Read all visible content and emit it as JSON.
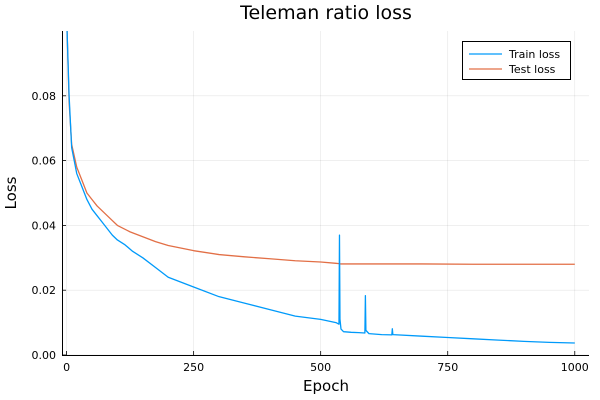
{
  "chart_data": {
    "type": "line",
    "title": "Teleman ratio loss",
    "xlabel": "Epoch",
    "ylabel": "Loss",
    "xlim": [
      -9,
      1028
    ],
    "ylim": [
      0,
      0.1
    ],
    "xticks": [
      0,
      250,
      500,
      750,
      1000
    ],
    "xtick_labels": [
      "0",
      "250",
      "500",
      "750",
      "1000"
    ],
    "yticks": [
      0,
      0.02,
      0.04,
      0.06,
      0.08
    ],
    "ytick_labels": [
      "0.00",
      "0.02",
      "0.04",
      "0.06",
      "0.08"
    ],
    "grid": true,
    "legend_position": "top-right",
    "series": [
      {
        "name": "Train loss",
        "color": "#009AFA",
        "points": [
          [
            1,
            0.1
          ],
          [
            5,
            0.08
          ],
          [
            10,
            0.064
          ],
          [
            20,
            0.056
          ],
          [
            30,
            0.052
          ],
          [
            40,
            0.048
          ],
          [
            50,
            0.045
          ],
          [
            60,
            0.043
          ],
          [
            70,
            0.041
          ],
          [
            80,
            0.039
          ],
          [
            90,
            0.037
          ],
          [
            100,
            0.0355
          ],
          [
            115,
            0.034
          ],
          [
            130,
            0.032
          ],
          [
            150,
            0.03
          ],
          [
            175,
            0.027
          ],
          [
            200,
            0.024
          ],
          [
            250,
            0.021
          ],
          [
            300,
            0.018
          ],
          [
            350,
            0.016
          ],
          [
            400,
            0.014
          ],
          [
            450,
            0.012
          ],
          [
            500,
            0.011
          ],
          [
            530,
            0.01
          ],
          [
            536,
            0.0095
          ],
          [
            537,
            0.037
          ],
          [
            538,
            0.011
          ],
          [
            540,
            0.008
          ],
          [
            545,
            0.0072
          ],
          [
            560,
            0.007
          ],
          [
            575,
            0.0069
          ],
          [
            587,
            0.0068
          ],
          [
            588,
            0.0183
          ],
          [
            589,
            0.0076
          ],
          [
            595,
            0.0066
          ],
          [
            620,
            0.0063
          ],
          [
            640,
            0.0062
          ],
          [
            641,
            0.0081
          ],
          [
            642,
            0.0063
          ],
          [
            700,
            0.0058
          ],
          [
            750,
            0.0054
          ],
          [
            800,
            0.005
          ],
          [
            850,
            0.0046
          ],
          [
            900,
            0.0042
          ],
          [
            950,
            0.0039
          ],
          [
            1000,
            0.0037
          ]
        ]
      },
      {
        "name": "Test loss",
        "color": "#E26F46",
        "points": [
          [
            1,
            0.1
          ],
          [
            5,
            0.078
          ],
          [
            10,
            0.065
          ],
          [
            20,
            0.058
          ],
          [
            30,
            0.054
          ],
          [
            40,
            0.05
          ],
          [
            50,
            0.048
          ],
          [
            60,
            0.046
          ],
          [
            70,
            0.0445
          ],
          [
            80,
            0.043
          ],
          [
            90,
            0.0415
          ],
          [
            100,
            0.04
          ],
          [
            125,
            0.038
          ],
          [
            150,
            0.0365
          ],
          [
            175,
            0.035
          ],
          [
            200,
            0.0338
          ],
          [
            250,
            0.0322
          ],
          [
            300,
            0.031
          ],
          [
            350,
            0.0303
          ],
          [
            400,
            0.0297
          ],
          [
            450,
            0.0291
          ],
          [
            500,
            0.0287
          ],
          [
            530,
            0.0283
          ],
          [
            536,
            0.0282
          ],
          [
            540,
            0.0281
          ],
          [
            600,
            0.0281
          ],
          [
            700,
            0.0281
          ],
          [
            800,
            0.028
          ],
          [
            900,
            0.028
          ],
          [
            1000,
            0.028
          ]
        ]
      }
    ]
  }
}
